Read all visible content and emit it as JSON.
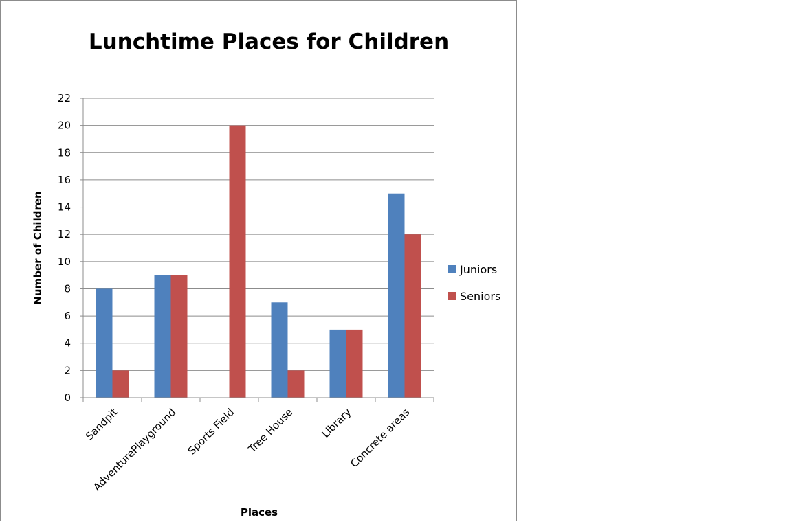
{
  "chart_data": {
    "type": "bar",
    "title": "Lunchtime Places for Children",
    "xlabel": "Places",
    "ylabel": "Number of Children",
    "categories": [
      "Sandpit",
      "AdventurePlayground",
      "Sports Field",
      "Tree House",
      "Library",
      "Concrete areas"
    ],
    "series": [
      {
        "name": "Juniors",
        "values": [
          8,
          9,
          0,
          7,
          5,
          15
        ],
        "color": "#4f81bd"
      },
      {
        "name": "Seniors",
        "values": [
          2,
          9,
          20,
          2,
          5,
          12
        ],
        "color": "#c0504d"
      }
    ],
    "ylim": [
      0,
      22
    ],
    "yticks": [
      0,
      2,
      4,
      6,
      8,
      10,
      12,
      14,
      16,
      18,
      20,
      22
    ],
    "grid": true,
    "legend_position": "right"
  }
}
